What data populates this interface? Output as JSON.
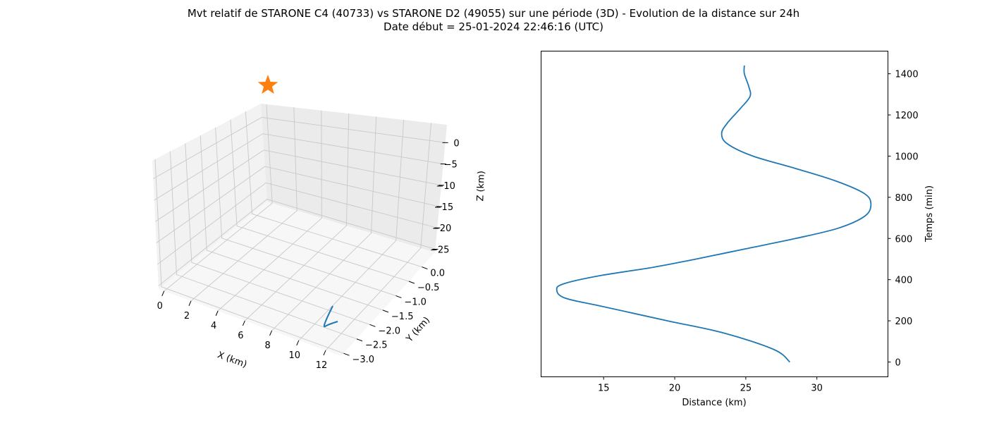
{
  "title_line1": "Mvt relatif de STARONE C4 (40733) vs STARONE D2 (49055) sur une période (3D) - Evolution de la distance sur 24h",
  "title_line2": "Date début = 25-01-2024 22:46:16 (UTC)",
  "chart_data": [
    {
      "type": "line3d",
      "xlabel": "X (km)",
      "ylabel": "Y (km)",
      "zlabel": "Z (km)",
      "xlim": [
        -1,
        13.5
      ],
      "ylim": [
        -3.1,
        0.3
      ],
      "zlim": [
        -26,
        0.5
      ],
      "x_ticks": [
        "0",
        "2",
        "4",
        "6",
        "8",
        "10",
        "12"
      ],
      "y_ticks": [
        "0.0",
        "−0.5",
        "−1.0",
        "−1.5",
        "−2.0",
        "−2.5",
        "−3.0"
      ],
      "z_ticks": [
        "0",
        "−5",
        "−10",
        "−15",
        "−20",
        "−25"
      ],
      "grid": true,
      "series_color": "#1f77b4",
      "marker_color": "#ff7f0e",
      "marker": "star"
    },
    {
      "type": "line",
      "xlabel": "Distance (km)",
      "ylabel": "Temps (min)",
      "xlim": [
        10.6,
        35
      ],
      "ylim": [
        -72,
        1510
      ],
      "x_ticks": [
        15,
        20,
        25,
        30
      ],
      "y_ticks": [
        0,
        200,
        400,
        600,
        800,
        1000,
        1200,
        1400
      ],
      "grid": false,
      "y_axis_side": "right",
      "series_color": "#1f77b4",
      "points": [
        [
          28.1,
          0
        ],
        [
          27.0,
          60
        ],
        [
          23.5,
          140
        ],
        [
          19.5,
          200
        ],
        [
          14.9,
          270
        ],
        [
          12.3,
          310
        ],
        [
          11.7,
          350
        ],
        [
          12.2,
          380
        ],
        [
          14.8,
          420
        ],
        [
          18.5,
          460
        ],
        [
          21.5,
          500
        ],
        [
          25.0,
          550
        ],
        [
          28.5,
          600
        ],
        [
          31.5,
          650
        ],
        [
          33.4,
          710
        ],
        [
          33.8,
          770
        ],
        [
          33.3,
          820
        ],
        [
          31.3,
          880
        ],
        [
          28.5,
          940
        ],
        [
          25.5,
          1000
        ],
        [
          23.7,
          1060
        ],
        [
          23.3,
          1110
        ],
        [
          23.7,
          1160
        ],
        [
          24.6,
          1230
        ],
        [
          25.3,
          1290
        ],
        [
          25.2,
          1340
        ],
        [
          24.9,
          1400
        ],
        [
          24.9,
          1440
        ]
      ]
    }
  ]
}
